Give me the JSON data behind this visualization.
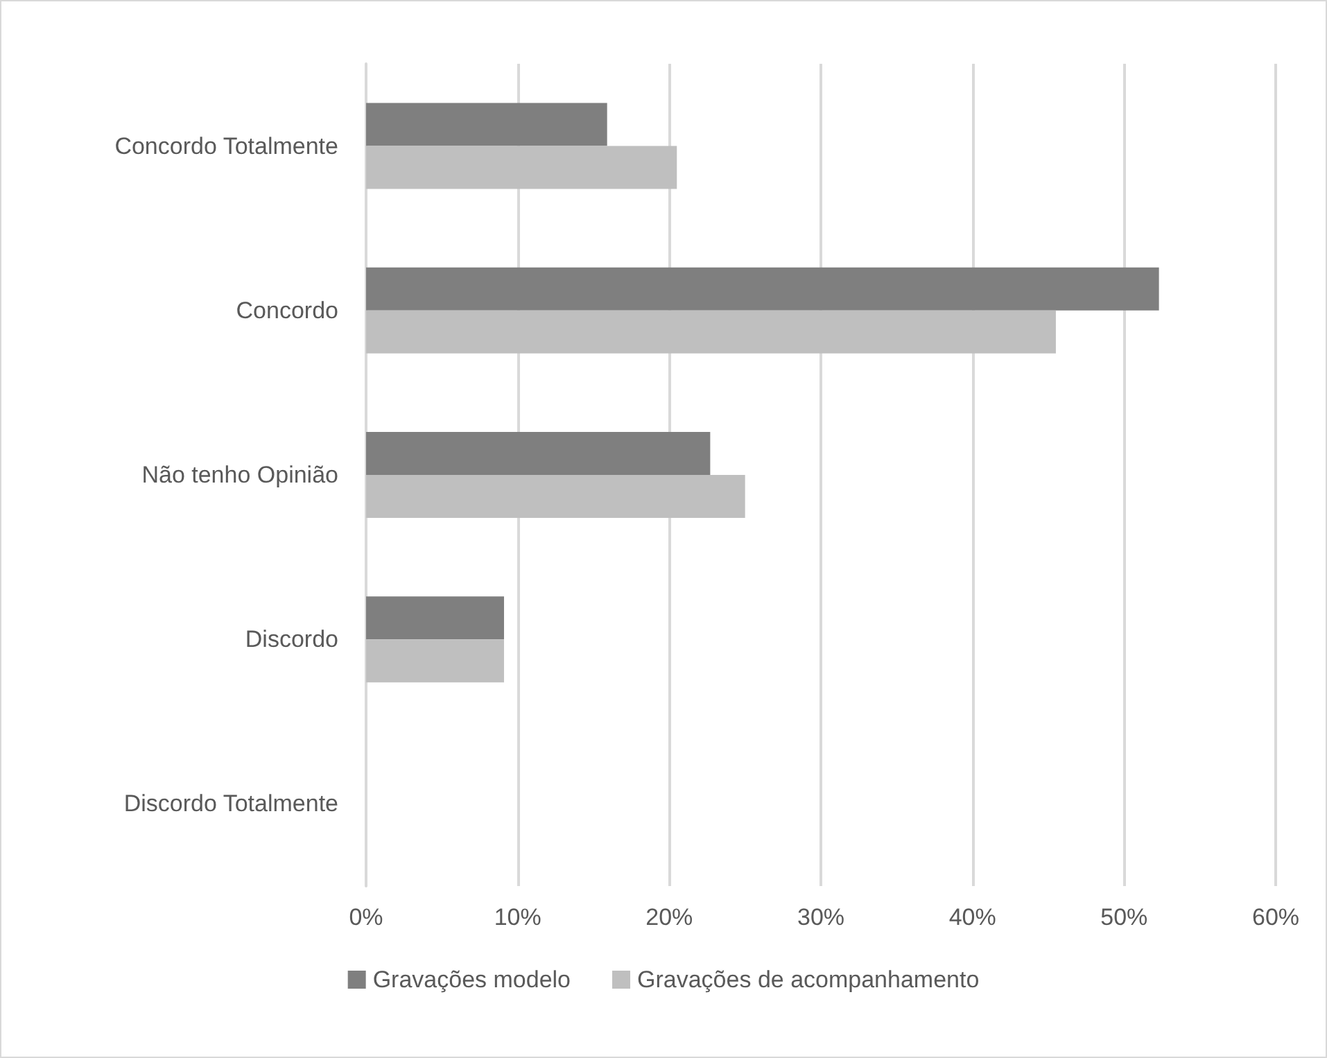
{
  "chart_data": {
    "type": "bar",
    "orientation": "horizontal",
    "categories": [
      "Concordo Totalmente",
      "Concordo",
      "Não tenho Opinião",
      "Discordo",
      "Discordo Totalmente"
    ],
    "series": [
      {
        "name": "Gravações modelo",
        "color": "#7f7f7f",
        "values": [
          15.9,
          52.3,
          22.7,
          9.1,
          0
        ]
      },
      {
        "name": "Gravações de acompanhamento",
        "color": "#bfbfbf",
        "values": [
          20.5,
          45.5,
          25.0,
          9.1,
          0
        ]
      }
    ],
    "xlim": [
      0,
      60
    ],
    "xticks": [
      {
        "value": 0,
        "label": "0%"
      },
      {
        "value": 10,
        "label": "10%"
      },
      {
        "value": 20,
        "label": "20%"
      },
      {
        "value": 30,
        "label": "30%"
      },
      {
        "value": 40,
        "label": "40%"
      },
      {
        "value": 50,
        "label": "50%"
      },
      {
        "value": 60,
        "label": "60%"
      }
    ],
    "grid": "x",
    "legend": "bottom"
  }
}
